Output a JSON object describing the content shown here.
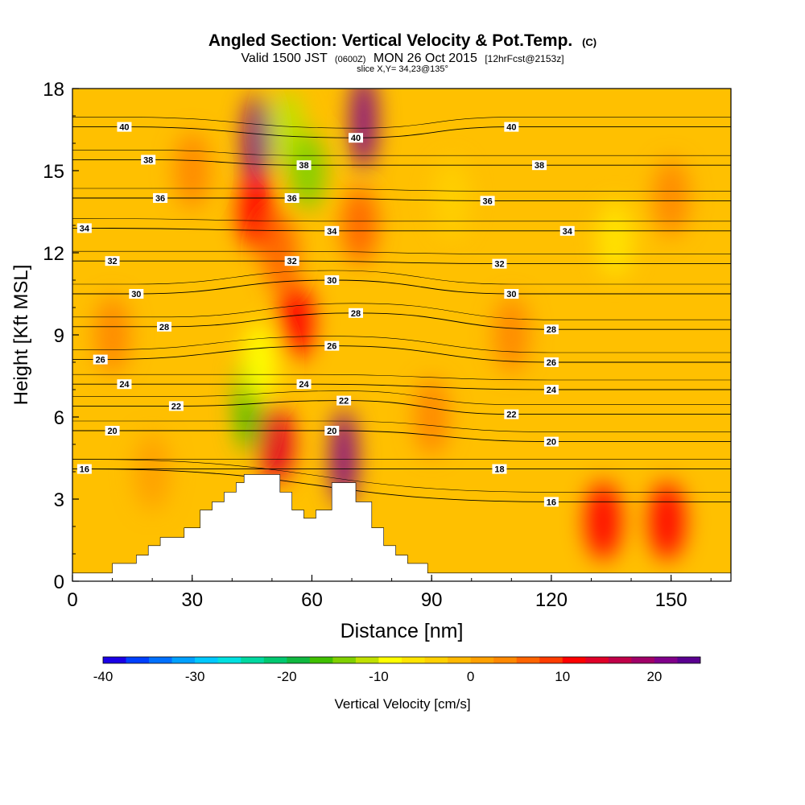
{
  "chart_data": {
    "type": "heatmap",
    "title": "Angled Section: Vertical Velocity & Pot.Temp.",
    "title_unit": "(C)",
    "subtitle_parts": [
      "Valid 1500 JST",
      "(0600Z)",
      "MON 26 Oct 2015",
      "[12hrFcst@2153z]"
    ],
    "slice_label": "slice X,Y= 34,23@135°",
    "xlabel": "Distance [nm]",
    "ylabel": "Height [Kft MSL]",
    "xlim": [
      0,
      165
    ],
    "ylim": [
      0,
      18
    ],
    "x_ticks": [
      "0",
      "30",
      "60",
      "90",
      "120",
      "150"
    ],
    "y_ticks": [
      "0",
      "3",
      "6",
      "9",
      "12",
      "15",
      "18"
    ],
    "colorbar": {
      "label": "Vertical Velocity [cm/s]",
      "range": [
        -40,
        25
      ],
      "ticks": [
        "-40",
        "-30",
        "-20",
        "-10",
        "0",
        "10",
        "20"
      ],
      "colors": [
        "#1a00e6",
        "#0040ff",
        "#0070ff",
        "#00a0ff",
        "#00c8ff",
        "#00e0e0",
        "#00d8a0",
        "#00c870",
        "#10b840",
        "#40c000",
        "#80d000",
        "#c0e000",
        "#ffff00",
        "#ffe400",
        "#ffd000",
        "#ffb800",
        "#ffa000",
        "#ff8800",
        "#ff6400",
        "#ff3c00",
        "#ff0000",
        "#e00028",
        "#c00048",
        "#a00068",
        "#80008a",
        "#5a0090"
      ]
    },
    "velocity_cells": [
      {
        "x": 46,
        "z": 16.0,
        "w": 22
      },
      {
        "x": 46,
        "z": 13.5,
        "w": 12
      },
      {
        "x": 54,
        "z": 16.5,
        "w": -12
      },
      {
        "x": 59,
        "z": 15.0,
        "w": -14
      },
      {
        "x": 73,
        "z": 16.8,
        "w": 20
      },
      {
        "x": 72,
        "z": 13.0,
        "w": 6
      },
      {
        "x": 56,
        "z": 9.5,
        "w": 10
      },
      {
        "x": 52,
        "z": 12.0,
        "w": 6
      },
      {
        "x": 44,
        "z": 6.5,
        "w": -16
      },
      {
        "x": 47,
        "z": 8.0,
        "w": -8
      },
      {
        "x": 51,
        "z": 5.0,
        "w": 14
      },
      {
        "x": 68,
        "z": 4.5,
        "w": 20
      },
      {
        "x": 133,
        "z": 2.2,
        "w": 12
      },
      {
        "x": 149,
        "z": 2.2,
        "w": 12
      },
      {
        "x": 136,
        "z": 12.5,
        "w": -7
      },
      {
        "x": 110,
        "z": 9.0,
        "w": 3
      },
      {
        "x": 10,
        "z": 9.0,
        "w": 3
      },
      {
        "x": 20,
        "z": 4.0,
        "w": 2
      },
      {
        "x": 150,
        "z": 14.0,
        "w": 3
      },
      {
        "x": 95,
        "z": 14.0,
        "w": -3
      },
      {
        "x": 30,
        "z": 15.0,
        "w": 3
      },
      {
        "x": 90,
        "z": 6.0,
        "w": 4
      }
    ],
    "theta_contours": [
      {
        "value": "16",
        "label_x": 3,
        "label_z": 4.1,
        "label2_x": 120,
        "label2_z": 2.9
      },
      {
        "value": "18",
        "label_x": 107,
        "label_z": 4.1
      },
      {
        "value": "20",
        "label_x": 10,
        "label_z": 5.5,
        "label2_x": 65,
        "label2_z": 5.5,
        "label3_x": 120,
        "label3_z": 5.1
      },
      {
        "value": "22",
        "label_x": 26,
        "label_z": 6.4,
        "label2_x": 68,
        "label2_z": 6.6,
        "label3_x": 110,
        "label3_z": 6.1
      },
      {
        "value": "24",
        "label_x": 13,
        "label_z": 7.2,
        "label2_x": 58,
        "label2_z": 7.2,
        "label3_x": 120,
        "label3_z": 7.0
      },
      {
        "value": "26",
        "label_x": 7,
        "label_z": 8.1,
        "label2_x": 65,
        "label2_z": 8.6,
        "label3_x": 120,
        "label3_z": 8.0
      },
      {
        "value": "28",
        "label_x": 23,
        "label_z": 9.3,
        "label2_x": 71,
        "label2_z": 9.8,
        "label3_x": 120,
        "label3_z": 9.2
      },
      {
        "value": "30",
        "label_x": 16,
        "label_z": 10.5,
        "label2_x": 65,
        "label2_z": 11.0,
        "label3_x": 110,
        "label3_z": 10.5
      },
      {
        "value": "32",
        "label_x": 10,
        "label_z": 11.7,
        "label2_x": 55,
        "label2_z": 11.7,
        "label3_x": 107,
        "label3_z": 11.6
      },
      {
        "value": "34",
        "label_x": 3,
        "label_z": 12.9,
        "label2_x": 65,
        "label2_z": 12.8,
        "label3_x": 124,
        "label3_z": 12.8
      },
      {
        "value": "36",
        "label_x": 22,
        "label_z": 14.0,
        "label2_x": 55,
        "label2_z": 14.0,
        "label3_x": 104,
        "label3_z": 13.9
      },
      {
        "value": "38",
        "label_x": 19,
        "label_z": 15.4,
        "label2_x": 58,
        "label2_z": 15.2,
        "label3_x": 117,
        "label3_z": 15.2
      },
      {
        "value": "40",
        "label_x": 13,
        "label_z": 16.6,
        "label2_x": 71,
        "label2_z": 16.2,
        "label3_x": 110,
        "label3_z": 16.6
      }
    ],
    "terrain": [
      [
        0,
        0.3
      ],
      [
        10,
        0.3
      ],
      [
        10,
        0.65
      ],
      [
        16,
        0.65
      ],
      [
        16,
        0.95
      ],
      [
        19,
        0.95
      ],
      [
        19,
        1.3
      ],
      [
        22,
        1.3
      ],
      [
        22,
        1.6
      ],
      [
        28,
        1.6
      ],
      [
        28,
        1.95
      ],
      [
        32,
        1.95
      ],
      [
        32,
        2.6
      ],
      [
        35,
        2.6
      ],
      [
        35,
        2.9
      ],
      [
        38,
        2.9
      ],
      [
        38,
        3.25
      ],
      [
        41,
        3.25
      ],
      [
        41,
        3.6
      ],
      [
        43,
        3.6
      ],
      [
        43,
        3.9
      ],
      [
        52,
        3.9
      ],
      [
        52,
        3.25
      ],
      [
        55,
        3.25
      ],
      [
        55,
        2.6
      ],
      [
        58,
        2.6
      ],
      [
        58,
        2.3
      ],
      [
        61,
        2.3
      ],
      [
        61,
        2.6
      ],
      [
        65,
        2.6
      ],
      [
        65,
        3.6
      ],
      [
        71,
        3.6
      ],
      [
        71,
        2.9
      ],
      [
        75,
        2.9
      ],
      [
        75,
        1.95
      ],
      [
        78,
        1.95
      ],
      [
        78,
        1.3
      ],
      [
        81,
        1.3
      ],
      [
        81,
        0.95
      ],
      [
        84,
        0.95
      ],
      [
        84,
        0.65
      ],
      [
        89,
        0.65
      ],
      [
        89,
        0.3
      ],
      [
        165,
        0.3
      ]
    ]
  }
}
